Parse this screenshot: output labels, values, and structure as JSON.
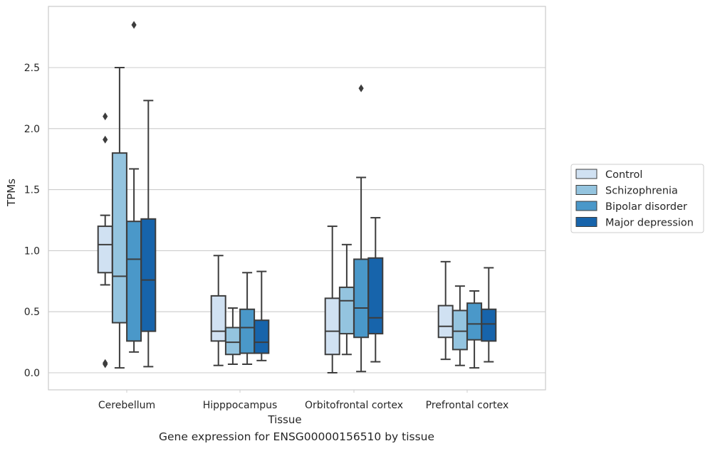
{
  "caption": "Gene expression for ENSG00000156510 by tissue",
  "chart_data": {
    "type": "boxplot",
    "xlabel": "Tissue",
    "ylabel": "TPMs",
    "ylim": [
      -0.14,
      2.9
    ],
    "yticks": [
      0.0,
      0.5,
      1.0,
      1.5,
      2.0,
      2.5
    ],
    "ytick_labels": [
      "0.0",
      "0.5",
      "1.0",
      "1.5",
      "2.0",
      "2.5"
    ],
    "grid": "horizontal",
    "legend_position": "right",
    "categories": [
      "Cerebellum",
      "Hipppocampus",
      "Orbitofrontal cortex",
      "Prefrontal cortex"
    ],
    "series": [
      {
        "name": "Control",
        "color": "#d0e1f2",
        "boxes": [
          {
            "whislo": 0.72,
            "q1": 0.82,
            "med": 1.05,
            "q3": 1.2,
            "whishi": 1.29,
            "fliers": [
              2.1,
              1.91,
              0.08,
              0.07
            ]
          },
          {
            "whislo": 0.06,
            "q1": 0.26,
            "med": 0.34,
            "q3": 0.63,
            "whishi": 0.96,
            "fliers": []
          },
          {
            "whislo": 0.0,
            "q1": 0.15,
            "med": 0.34,
            "q3": 0.61,
            "whishi": 1.2,
            "fliers": []
          },
          {
            "whislo": 0.11,
            "q1": 0.29,
            "med": 0.38,
            "q3": 0.55,
            "whishi": 0.91,
            "fliers": []
          }
        ]
      },
      {
        "name": "Schizophrenia",
        "color": "#94c4df",
        "boxes": [
          {
            "whislo": 0.04,
            "q1": 0.41,
            "med": 0.79,
            "q3": 1.8,
            "whishi": 2.5,
            "fliers": []
          },
          {
            "whislo": 0.07,
            "q1": 0.15,
            "med": 0.25,
            "q3": 0.37,
            "whishi": 0.53,
            "fliers": []
          },
          {
            "whislo": 0.15,
            "q1": 0.32,
            "med": 0.59,
            "q3": 0.7,
            "whishi": 1.05,
            "fliers": []
          },
          {
            "whislo": 0.06,
            "q1": 0.19,
            "med": 0.34,
            "q3": 0.51,
            "whishi": 0.71,
            "fliers": []
          }
        ]
      },
      {
        "name": "Bipolar disorder",
        "color": "#4a98c9",
        "boxes": [
          {
            "whislo": 0.17,
            "q1": 0.26,
            "med": 0.93,
            "q3": 1.24,
            "whishi": 1.67,
            "fliers": [
              2.85
            ]
          },
          {
            "whislo": 0.07,
            "q1": 0.16,
            "med": 0.37,
            "q3": 0.52,
            "whishi": 0.82,
            "fliers": []
          },
          {
            "whislo": 0.01,
            "q1": 0.29,
            "med": 0.53,
            "q3": 0.93,
            "whishi": 1.6,
            "fliers": [
              2.33
            ]
          },
          {
            "whislo": 0.04,
            "q1": 0.27,
            "med": 0.4,
            "q3": 0.57,
            "whishi": 0.67,
            "fliers": []
          }
        ]
      },
      {
        "name": "Major depression",
        "color": "#1764ab",
        "boxes": [
          {
            "whislo": 0.05,
            "q1": 0.34,
            "med": 0.76,
            "q3": 1.26,
            "whishi": 2.23,
            "fliers": []
          },
          {
            "whislo": 0.1,
            "q1": 0.16,
            "med": 0.25,
            "q3": 0.43,
            "whishi": 0.83,
            "fliers": []
          },
          {
            "whislo": 0.09,
            "q1": 0.32,
            "med": 0.45,
            "q3": 0.94,
            "whishi": 1.27,
            "fliers": []
          },
          {
            "whislo": 0.09,
            "q1": 0.26,
            "med": 0.4,
            "q3": 0.52,
            "whishi": 0.86,
            "fliers": []
          }
        ]
      }
    ]
  }
}
